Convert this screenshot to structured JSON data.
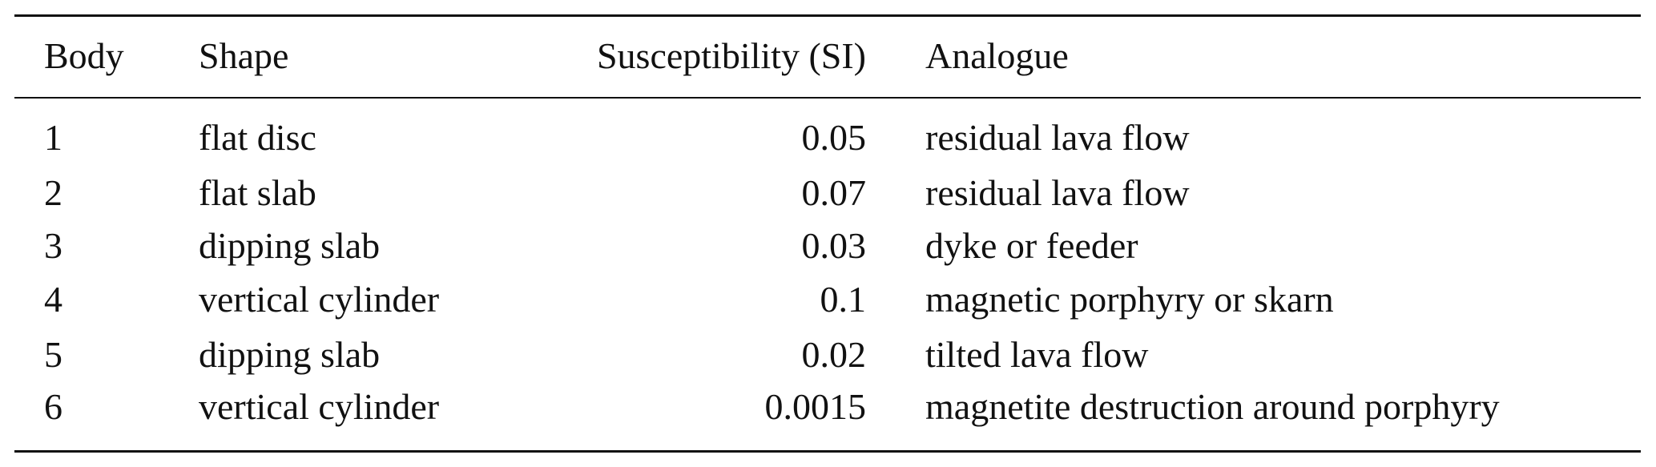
{
  "table": {
    "headers": [
      "Body",
      "Shape",
      "Susceptibility (SI)",
      "Analogue"
    ],
    "rows": [
      [
        "1",
        "flat disc",
        "0.05",
        "residual lava flow"
      ],
      [
        "2",
        "flat slab",
        "0.07",
        "residual lava flow"
      ],
      [
        "3",
        "dipping slab",
        "0.03",
        "dyke or feeder"
      ],
      [
        "4",
        "vertical cylinder",
        "0.1",
        "magnetic porphyry or skarn"
      ],
      [
        "5",
        "dipping slab",
        "0.02",
        "tilted lava flow"
      ],
      [
        "6",
        "vertical cylinder",
        "0.0015",
        "magnetite destruction around porphyry"
      ]
    ]
  }
}
